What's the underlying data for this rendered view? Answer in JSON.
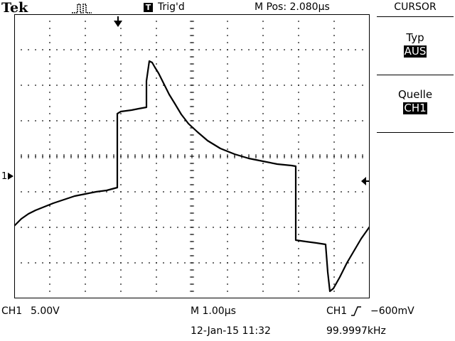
{
  "header": {
    "brand": "Tek",
    "acquisition_icon": "run-pulse-icon",
    "trigger_badge": "T",
    "trigger_status": "Trig'd",
    "m_pos": "M Pos: 2.080µs"
  },
  "menu": {
    "title": "CURSOR",
    "items": [
      {
        "label": "Typ",
        "value": "AUS"
      },
      {
        "label": "Quelle",
        "value": "CH1"
      }
    ]
  },
  "markers": {
    "ch1_ground": "1",
    "ch1_ground_icon": "arrow-right-icon",
    "trigger_position_icon": "arrow-down-icon",
    "trigger_level_icon": "arrow-left-icon"
  },
  "status": {
    "ch1_label": "CH1",
    "ch1_scale": "5.00V",
    "timebase": "M 1.00µs",
    "trigger_source": "CH1",
    "trigger_slope_icon": "rising-edge-icon",
    "trigger_level": "−600mV",
    "date_time": "12-Jan-15 11:32",
    "frequency": "99.9997kHz"
  },
  "colors": {
    "trace": "#000000",
    "background": "#ffffff",
    "grid": "#000000"
  }
}
